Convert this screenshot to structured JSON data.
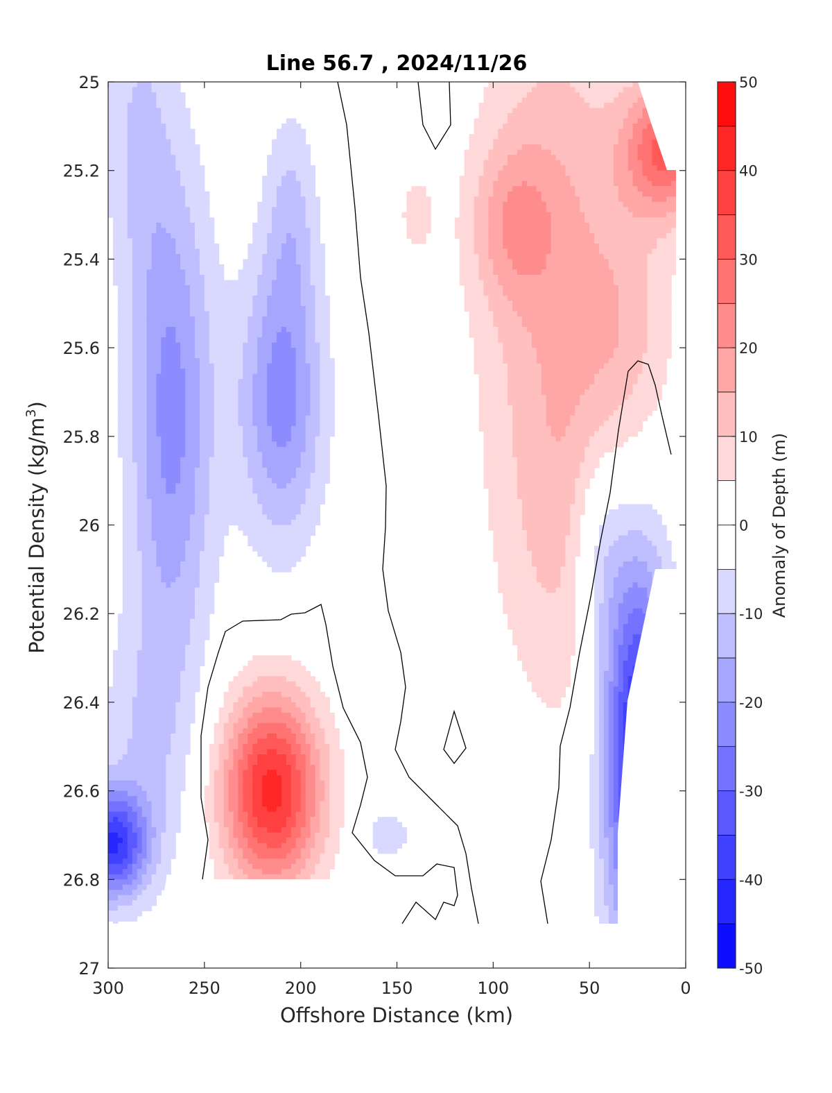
{
  "chart_data": {
    "type": "heatmap",
    "subtype": "filled-contour",
    "title": "Line 56.7 , 2024/11/26",
    "xlabel": "Offshore Distance (km)",
    "ylabel_main": "Potential Density (kg/m",
    "ylabel_sup": "3",
    "ylabel_tail": ")",
    "xlim": [
      300,
      0
    ],
    "x_reversed": true,
    "ylim": [
      25,
      27
    ],
    "y_reversed": true,
    "xticks": [
      "300",
      "250",
      "200",
      "150",
      "100",
      "50",
      "0"
    ],
    "xtick_values": [
      300,
      250,
      200,
      150,
      100,
      50,
      0
    ],
    "yticks": [
      "25",
      "25.2",
      "25.4",
      "25.6",
      "25.8",
      "26",
      "26.2",
      "26.4",
      "26.6",
      "26.8",
      "27"
    ],
    "ytick_values": [
      25,
      25.2,
      25.4,
      25.6,
      25.8,
      26,
      26.2,
      26.4,
      26.6,
      26.8,
      27
    ],
    "colorbar": {
      "label": "Anomaly of Depth (m)",
      "range": [
        -50,
        50
      ],
      "ticks": [
        "50",
        "40",
        "30",
        "20",
        "10",
        "0",
        "-10",
        "-20",
        "-30",
        "-40",
        "-50"
      ],
      "tick_values": [
        50,
        40,
        30,
        20,
        10,
        0,
        -10,
        -20,
        -30,
        -40,
        -50
      ],
      "level_step": 5
    },
    "zero_contour_line_color": "#000000",
    "anomaly_regions": [
      {
        "name": "offshore negative column",
        "x_center": 267,
        "y_center": 25.75,
        "peak": -22
      },
      {
        "name": "negative core near 210 km",
        "x_center": 210,
        "y_center": 25.7,
        "peak": -22
      },
      {
        "name": "deep negative corner",
        "x_center": 298,
        "y_center": 26.72,
        "peak": -37
      },
      {
        "name": "deep positive core",
        "x_center": 210,
        "y_center": 26.58,
        "peak": 38
      },
      {
        "name": "inshore positive band",
        "x_center": 60,
        "y_center": 25.4,
        "peak": 22
      },
      {
        "name": "nearshore strong positive",
        "x_center": 12,
        "y_center": 25.12,
        "peak": 35
      },
      {
        "name": "nearshore deep negative",
        "x_center": 30,
        "y_center": 26.4,
        "peak": -45
      }
    ]
  },
  "colors": {
    "negative_max": "#0000ff",
    "neutral": "#ffffff",
    "positive_max": "#ff0000",
    "axis": "#262626"
  }
}
